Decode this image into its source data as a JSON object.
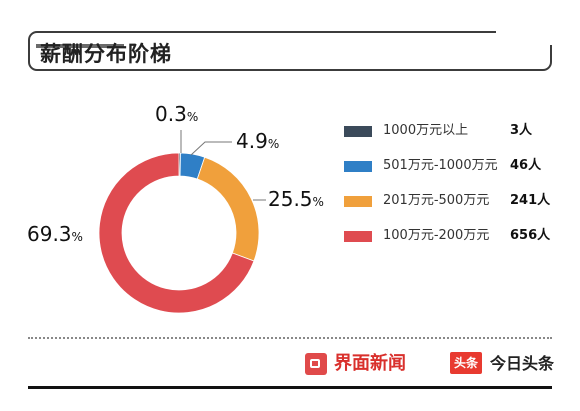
{
  "header": {
    "title": "薪酬分布阶梯"
  },
  "chart_data": {
    "type": "pie",
    "donut": true,
    "title": "薪酬分布阶梯",
    "slices": [
      {
        "label": "1000万元以上",
        "count": "3人",
        "value": 0.3,
        "value_label": "0.3",
        "color": "#3b4a5a"
      },
      {
        "label": "501万元-1000万元",
        "count": "46人",
        "value": 4.9,
        "value_label": "4.9",
        "color": "#2f7fc6"
      },
      {
        "label": "201万元-500万元",
        "count": "241人",
        "value": 25.5,
        "value_label": "25.5",
        "color": "#f0a03c"
      },
      {
        "label": "100万元-200万元",
        "count": "656人",
        "value": 69.3,
        "value_label": "69.3",
        "color": "#df4b50"
      }
    ],
    "unit": "%",
    "legend_position": "right"
  },
  "footer": {
    "brand_left": "界面新闻",
    "brand_right_badge": "头条",
    "brand_right": "今日头条"
  }
}
